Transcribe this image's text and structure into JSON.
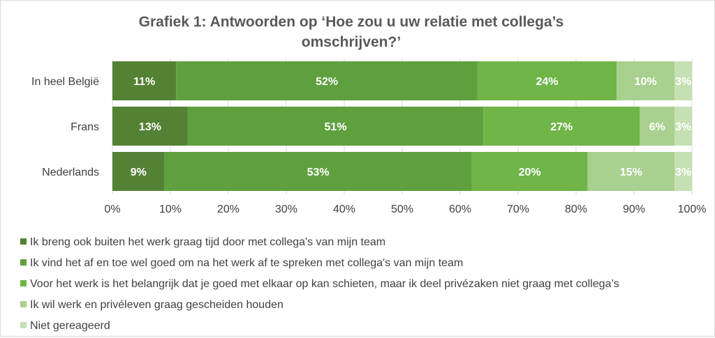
{
  "chart_data": {
    "type": "bar",
    "orientation": "horizontal",
    "stacked": true,
    "title_lines": [
      "Grafiek 1: Antwoorden op ‘Hoe zou u uw relatie met collega’s",
      "omschrijven?’"
    ],
    "categories": [
      "In heel België",
      "Frans",
      "Nederlands"
    ],
    "series": [
      {
        "name": "Ik breng ook buiten het werk graag tijd door met collega's van mijn team",
        "color": "#548235",
        "values": [
          11,
          13,
          9
        ]
      },
      {
        "name": "Ik vind het af en toe wel goed om na het werk af te spreken met collega's van mijn team",
        "color": "#5fa03e",
        "values": [
          52,
          51,
          53
        ]
      },
      {
        "name": "Voor het werk is het belangrijk dat je goed met elkaar op kan schieten, maar ik deel privézaken niet graag met collega’s",
        "color": "#6fb548",
        "values": [
          24,
          27,
          20
        ]
      },
      {
        "name": "Ik wil werk en privéleven graag gescheiden houden",
        "color": "#a9d08e",
        "values": [
          10,
          6,
          15
        ]
      },
      {
        "name": "Niet gereageerd",
        "color": "#c6e0b4",
        "values": [
          3,
          3,
          3
        ]
      }
    ],
    "xlim": [
      0,
      100
    ],
    "xticks": [
      "0%",
      "10%",
      "20%",
      "30%",
      "40%",
      "50%",
      "60%",
      "70%",
      "80%",
      "90%",
      "100%"
    ],
    "grid": true,
    "legend_position": "bottom",
    "data_labels": true
  }
}
